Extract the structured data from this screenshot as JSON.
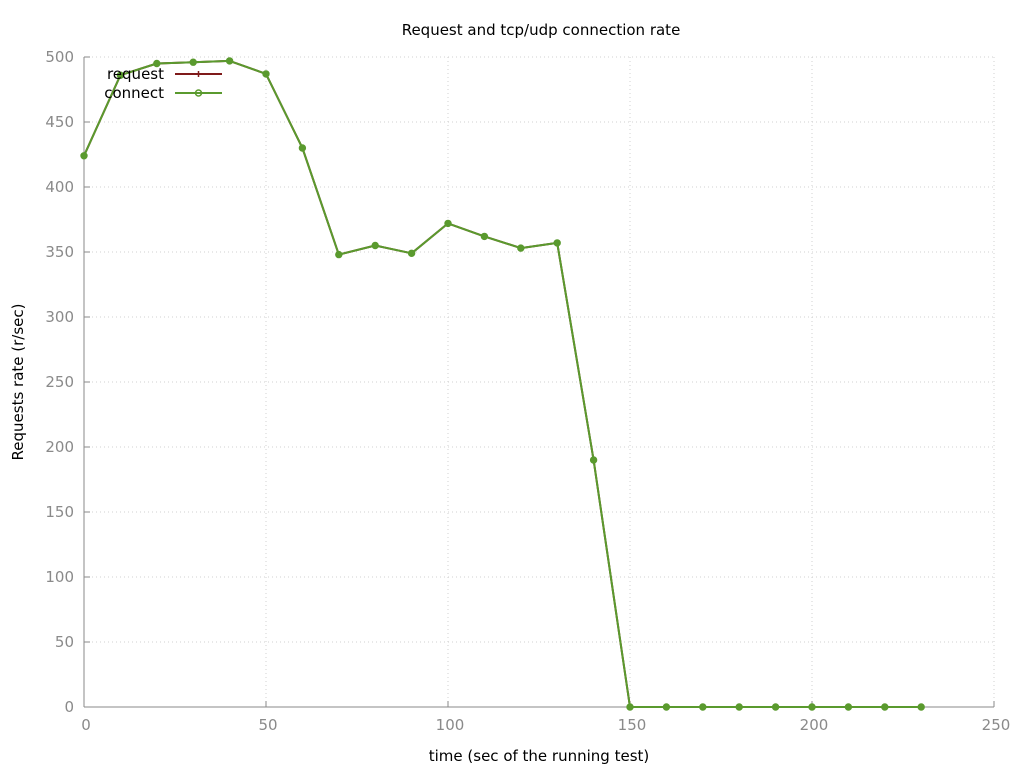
{
  "chart_data": {
    "type": "line",
    "title": "Request and tcp/udp connection rate",
    "xlabel": "time (sec of the running test)",
    "ylabel": "Requests rate (r/sec)",
    "xlim": [
      0,
      250
    ],
    "ylim": [
      0,
      500
    ],
    "x_ticks": [
      0,
      50,
      100,
      150,
      200,
      250
    ],
    "y_ticks": [
      0,
      50,
      100,
      150,
      200,
      250,
      300,
      350,
      400,
      450,
      500
    ],
    "grid": true,
    "legend_position": "top-left",
    "x": [
      0,
      10,
      20,
      30,
      40,
      50,
      60,
      70,
      80,
      90,
      100,
      110,
      120,
      130,
      140,
      150,
      160,
      170,
      180,
      190,
      200,
      210,
      220,
      230
    ],
    "series": [
      {
        "name": "request",
        "color": "#7f1a1a",
        "marker": "plus",
        "values": [
          424,
          486,
          495,
          496,
          497,
          487,
          430,
          348,
          355,
          349,
          372,
          362,
          353,
          357,
          190,
          0,
          0,
          0,
          0,
          0,
          0,
          0,
          0,
          0
        ]
      },
      {
        "name": "connect",
        "color": "#5a9a2e",
        "marker": "circle",
        "values": [
          424,
          486,
          495,
          496,
          497,
          487,
          430,
          348,
          355,
          349,
          372,
          362,
          353,
          357,
          190,
          0,
          0,
          0,
          0,
          0,
          0,
          0,
          0,
          0
        ]
      }
    ]
  }
}
